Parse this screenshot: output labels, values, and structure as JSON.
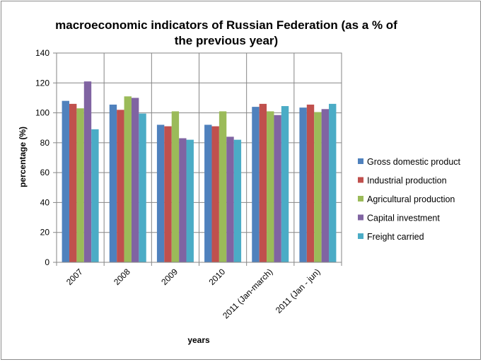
{
  "chart_data": {
    "type": "bar",
    "title_line1": "macroeconomic indicators of Russian Federation (as a % of",
    "title_line2": "the previous year)",
    "xlabel": "years",
    "ylabel": "percentage (%)",
    "ylim": [
      0,
      140
    ],
    "yticks": [
      0,
      20,
      40,
      60,
      80,
      100,
      120,
      140
    ],
    "grid": true,
    "legend_position": "right",
    "categories": [
      "2007",
      "2008",
      "2009",
      "2010",
      "2011 (Jan-march)",
      "2011 (Jan -  jun)"
    ],
    "series": [
      {
        "name": "Gross domestic product",
        "color": "#4f81bd",
        "values": [
          108,
          105.5,
          92,
          92,
          104,
          103.5
        ]
      },
      {
        "name": "Industrial production",
        "color": "#c0504d",
        "values": [
          106,
          102,
          91,
          91,
          106,
          105.5
        ]
      },
      {
        "name": "Agricultural production",
        "color": "#9bbb59",
        "values": [
          103,
          111,
          101,
          101,
          101,
          100.5
        ]
      },
      {
        "name": "Capital investment",
        "color": "#8064a2",
        "values": [
          121,
          110,
          83,
          84,
          98.5,
          102.5
        ]
      },
      {
        "name": "Freight carried",
        "color": "#4bacc6",
        "values": [
          89,
          99.5,
          82,
          82,
          104.5,
          106
        ]
      }
    ]
  }
}
